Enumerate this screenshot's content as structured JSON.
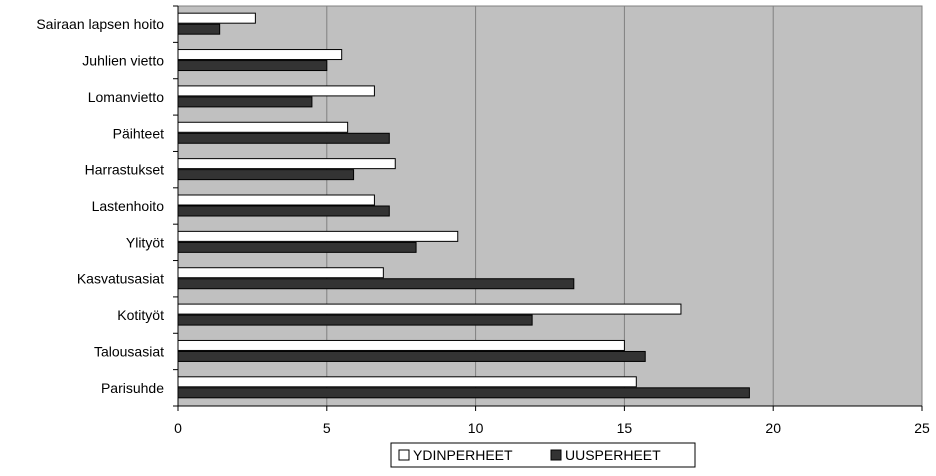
{
  "chart_data": {
    "type": "bar",
    "orientation": "horizontal",
    "categories": [
      "Sairaan lapsen hoito",
      "Juhlien vietto",
      "Lomanvietto",
      "Päihteet",
      "Harrastukset",
      "Lastenhoito",
      "Ylityöt",
      "Kasvatusasiat",
      "Kotityöt",
      "Talousasiat",
      "Parisuhde"
    ],
    "series": [
      {
        "name": "YDINPERHEET",
        "color": "#ffffff",
        "values": [
          2.6,
          5.5,
          6.6,
          5.7,
          7.3,
          6.6,
          9.4,
          6.9,
          16.9,
          15.0,
          15.4
        ]
      },
      {
        "name": "UUSPERHEET",
        "color": "#333333",
        "values": [
          1.4,
          5.0,
          4.5,
          7.1,
          5.9,
          7.1,
          8.0,
          13.3,
          11.9,
          15.7,
          19.2
        ]
      }
    ],
    "xlim": [
      0,
      25
    ],
    "xticks": [
      "0",
      "5",
      "10",
      "15",
      "20",
      "25"
    ],
    "title": "",
    "xlabel": "",
    "ylabel": "",
    "grid": "vertical",
    "plot_background": "#c0c0c0",
    "legend_position": "bottom"
  }
}
